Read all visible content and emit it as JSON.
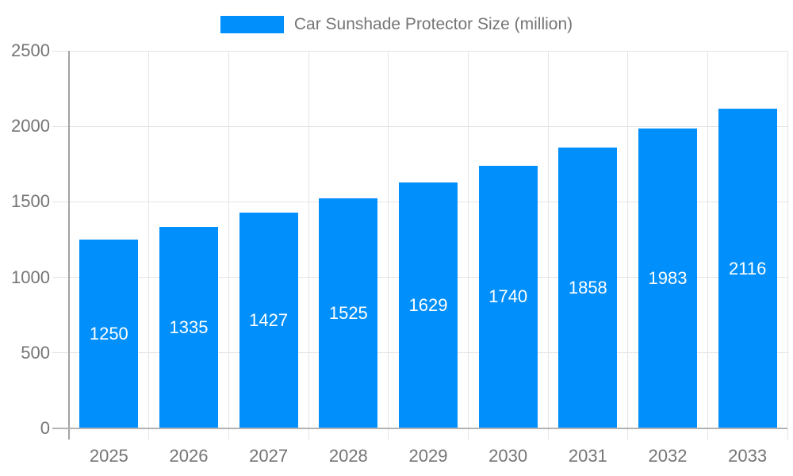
{
  "legend": {
    "label": "Car Sunshade Protector Size (million)"
  },
  "chart_data": {
    "type": "bar",
    "title": "",
    "xlabel": "",
    "ylabel": "",
    "categories": [
      "2025",
      "2026",
      "2027",
      "2028",
      "2029",
      "2030",
      "2031",
      "2032",
      "2033"
    ],
    "series": [
      {
        "name": "Car Sunshade Protector Size (million)",
        "values": [
          1250,
          1335,
          1427,
          1525,
          1629,
          1740,
          1858,
          1983,
          2116
        ]
      }
    ],
    "ylim": [
      0,
      2500
    ],
    "yticks": [
      0,
      500,
      1000,
      1500,
      2000,
      2500
    ],
    "grid": true,
    "legend_position": "top",
    "colors": {
      "bar": "#008FFB",
      "value_label": "#ffffff",
      "axis_text": "#757575",
      "gridline": "#e4e4e4",
      "y_axis_line": "#a3a3a3",
      "baseline": "#b3b3b3",
      "background": "#ffffff"
    }
  }
}
